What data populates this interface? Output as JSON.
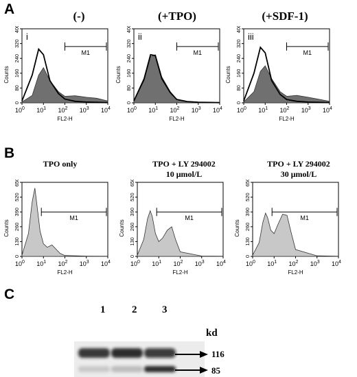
{
  "panels": {
    "A": {
      "letter": "A",
      "titles": [
        "(-)",
        "(+TPO)",
        "(+SDF-1)"
      ],
      "subplot_labels": [
        "i",
        "ii",
        "iii"
      ]
    },
    "B": {
      "letter": "B",
      "titles": [
        {
          "line1": "TPO only",
          "line2": ""
        },
        {
          "line1": "TPO + LY 294002",
          "line2": "10 μmol/L"
        },
        {
          "line1": "TPO + LY 294002",
          "line2": "30 μmol/L"
        }
      ]
    },
    "C": {
      "letter": "C",
      "lanes": [
        "1",
        "2",
        "3"
      ],
      "unit": "kd",
      "markers": [
        "116",
        "85"
      ]
    }
  },
  "axes": {
    "ylabel": "Counts",
    "xlabel": "FL2-H",
    "gate": "M1",
    "a_yticks": [
      "0",
      "80",
      "160",
      "240",
      "320",
      "400"
    ],
    "b_yticks": [
      "0",
      "130",
      "260",
      "390",
      "520",
      "650"
    ],
    "xtick_base": "10",
    "xtick_exps": [
      "0",
      "1",
      "2",
      "3",
      "4"
    ]
  },
  "chart_data": [
    {
      "type": "area",
      "title": "(-)",
      "panel": "A-i",
      "xscale": "log",
      "xlim": [
        1,
        10000
      ],
      "ylim": [
        0,
        400
      ],
      "ylabel": "Counts",
      "xlabel": "FL2-H",
      "gate": "M1",
      "gate_range": [
        100,
        10000
      ],
      "series": [
        {
          "x": [
            1,
            3,
            6,
            10,
            20,
            50,
            100,
            300,
            1000,
            3000,
            10000
          ],
          "values": [
            5,
            40,
            150,
            190,
            120,
            60,
            35,
            38,
            30,
            25,
            10
          ]
        },
        {
          "x": [
            1,
            3,
            6,
            10,
            20,
            50,
            100,
            300,
            1000,
            10000
          ],
          "values": [
            10,
            150,
            290,
            260,
            120,
            50,
            20,
            8,
            4,
            1
          ]
        }
      ]
    },
    {
      "type": "area",
      "title": "(+TPO)",
      "panel": "A-ii",
      "xscale": "log",
      "xlim": [
        1,
        10000
      ],
      "ylim": [
        0,
        400
      ],
      "ylabel": "Counts",
      "xlabel": "FL2-H",
      "gate": "M1",
      "gate_range": [
        100,
        10000
      ],
      "series": [
        {
          "x": [
            1,
            3,
            6,
            10,
            20,
            50,
            100,
            300,
            1000,
            10000
          ],
          "values": [
            10,
            120,
            250,
            260,
            140,
            60,
            20,
            8,
            4,
            1
          ]
        },
        {
          "x": [
            1,
            3,
            6,
            10,
            20,
            50,
            100,
            300,
            1000,
            10000
          ],
          "values": [
            10,
            130,
            260,
            255,
            130,
            55,
            18,
            7,
            3,
            1
          ]
        }
      ]
    },
    {
      "type": "area",
      "title": "(+SDF-1)",
      "panel": "A-iii",
      "xscale": "log",
      "xlim": [
        1,
        10000
      ],
      "ylim": [
        0,
        400
      ],
      "ylabel": "Counts",
      "xlabel": "FL2-H",
      "gate": "M1",
      "gate_range": [
        100,
        10000
      ],
      "series": [
        {
          "x": [
            1,
            3,
            6,
            10,
            20,
            50,
            100,
            300,
            1000,
            3000,
            10000
          ],
          "values": [
            5,
            60,
            170,
            200,
            130,
            60,
            35,
            40,
            30,
            20,
            8
          ]
        },
        {
          "x": [
            1,
            3,
            6,
            10,
            20,
            50,
            100,
            300,
            1000,
            10000
          ],
          "values": [
            10,
            160,
            300,
            270,
            120,
            45,
            18,
            8,
            4,
            1
          ]
        }
      ]
    },
    {
      "type": "area",
      "title": "TPO only",
      "panel": "B-1",
      "xscale": "log",
      "xlim": [
        1,
        10000
      ],
      "ylim": [
        0,
        650
      ],
      "ylabel": "Counts",
      "xlabel": "FL2-H",
      "gate": "M1",
      "gate_range": [
        8,
        10000
      ],
      "series": [
        {
          "x": [
            1,
            2,
            3,
            4,
            5,
            7,
            10,
            15,
            25,
            40,
            60,
            100,
            1000,
            10000
          ],
          "values": [
            10,
            200,
            480,
            600,
            450,
            220,
            110,
            80,
            100,
            60,
            25,
            8,
            2,
            1
          ]
        }
      ]
    },
    {
      "type": "area",
      "title": "TPO + LY 294002 10 μmol/L",
      "panel": "B-2",
      "xscale": "log",
      "xlim": [
        1,
        10000
      ],
      "ylim": [
        0,
        650
      ],
      "ylabel": "Counts",
      "xlabel": "FL2-H",
      "gate": "M1",
      "gate_range": [
        8,
        10000
      ],
      "series": [
        {
          "x": [
            1,
            2,
            3,
            4,
            5,
            7,
            10,
            15,
            25,
            40,
            60,
            100,
            1000,
            10000
          ],
          "values": [
            10,
            150,
            330,
            400,
            350,
            200,
            130,
            160,
            230,
            260,
            150,
            40,
            3,
            1
          ]
        }
      ]
    },
    {
      "type": "area",
      "title": "TPO + LY 294002 30 μmol/L",
      "panel": "B-3",
      "xscale": "log",
      "xlim": [
        1,
        10000
      ],
      "ylim": [
        0,
        650
      ],
      "ylabel": "Counts",
      "xlabel": "FL2-H",
      "gate": "M1",
      "gate_range": [
        8,
        10000
      ],
      "series": [
        {
          "x": [
            1,
            2,
            3,
            4,
            5,
            7,
            10,
            15,
            25,
            40,
            60,
            100,
            1000,
            10000
          ],
          "values": [
            10,
            120,
            300,
            380,
            340,
            230,
            200,
            280,
            370,
            360,
            220,
            60,
            5,
            1
          ]
        }
      ]
    }
  ],
  "blot": {
    "bands_116": [
      0.85,
      0.9,
      0.8
    ],
    "bands_85": [
      0.15,
      0.2,
      0.9
    ]
  }
}
